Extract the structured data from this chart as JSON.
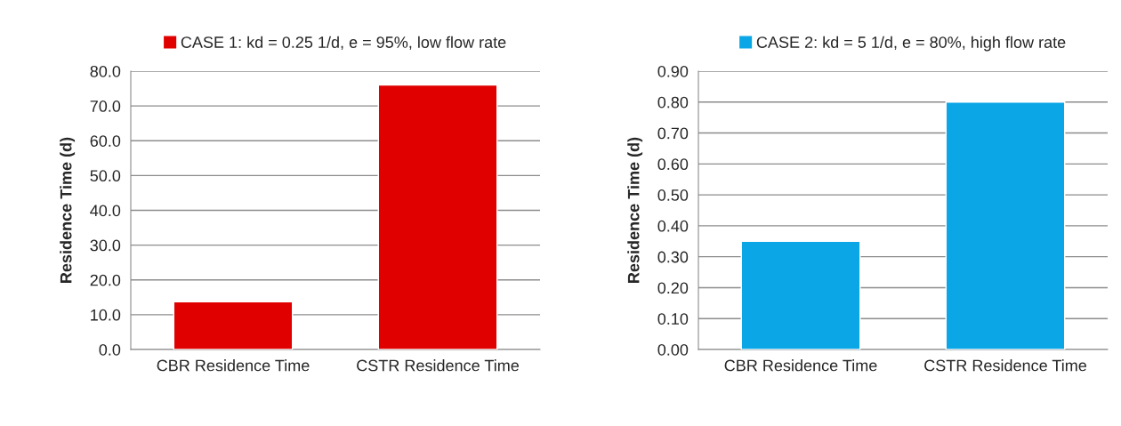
{
  "chart_data": [
    {
      "type": "bar",
      "categories": [
        "CBR Residence Time",
        "CSTR Residence Time"
      ],
      "ylabel": "Residence Time (d)",
      "series": [
        {
          "name": "CASE 1: kd = 0.25 1/d, e = 95%, low flow rate",
          "color": "#e00000",
          "values": [
            13.7,
            76.0
          ]
        }
      ],
      "ylim": [
        0,
        80
      ],
      "yticks": [
        {
          "value": 0,
          "label": "0.0"
        },
        {
          "value": 10,
          "label": "10.0"
        },
        {
          "value": 20,
          "label": "20.0"
        },
        {
          "value": 30,
          "label": "30.0"
        },
        {
          "value": 40,
          "label": "40.0"
        },
        {
          "value": 50,
          "label": "50.0"
        },
        {
          "value": 60,
          "label": "60.0"
        },
        {
          "value": 70,
          "label": "70.0"
        },
        {
          "value": 80,
          "label": "80.0"
        }
      ],
      "grid": "y",
      "legend": "top"
    },
    {
      "type": "bar",
      "categories": [
        "CBR Residence Time",
        "CSTR Residence Time"
      ],
      "ylabel": "Residence Time (d)",
      "series": [
        {
          "name": "CASE 2: kd = 5 1/d, e = 80%, high flow rate",
          "color": "#0aa6e6",
          "values": [
            0.35,
            0.8
          ]
        }
      ],
      "ylim": [
        0,
        0.9
      ],
      "yticks": [
        {
          "value": 0,
          "label": "0.00"
        },
        {
          "value": 0.1,
          "label": "0.10"
        },
        {
          "value": 0.2,
          "label": "0.20"
        },
        {
          "value": 0.3,
          "label": "0.30"
        },
        {
          "value": 0.4,
          "label": "0.40"
        },
        {
          "value": 0.5,
          "label": "0.50"
        },
        {
          "value": 0.6,
          "label": "0.60"
        },
        {
          "value": 0.7,
          "label": "0.70"
        },
        {
          "value": 0.8,
          "label": "0.80"
        },
        {
          "value": 0.9,
          "label": "0.90"
        }
      ],
      "grid": "y",
      "legend": "top"
    }
  ]
}
